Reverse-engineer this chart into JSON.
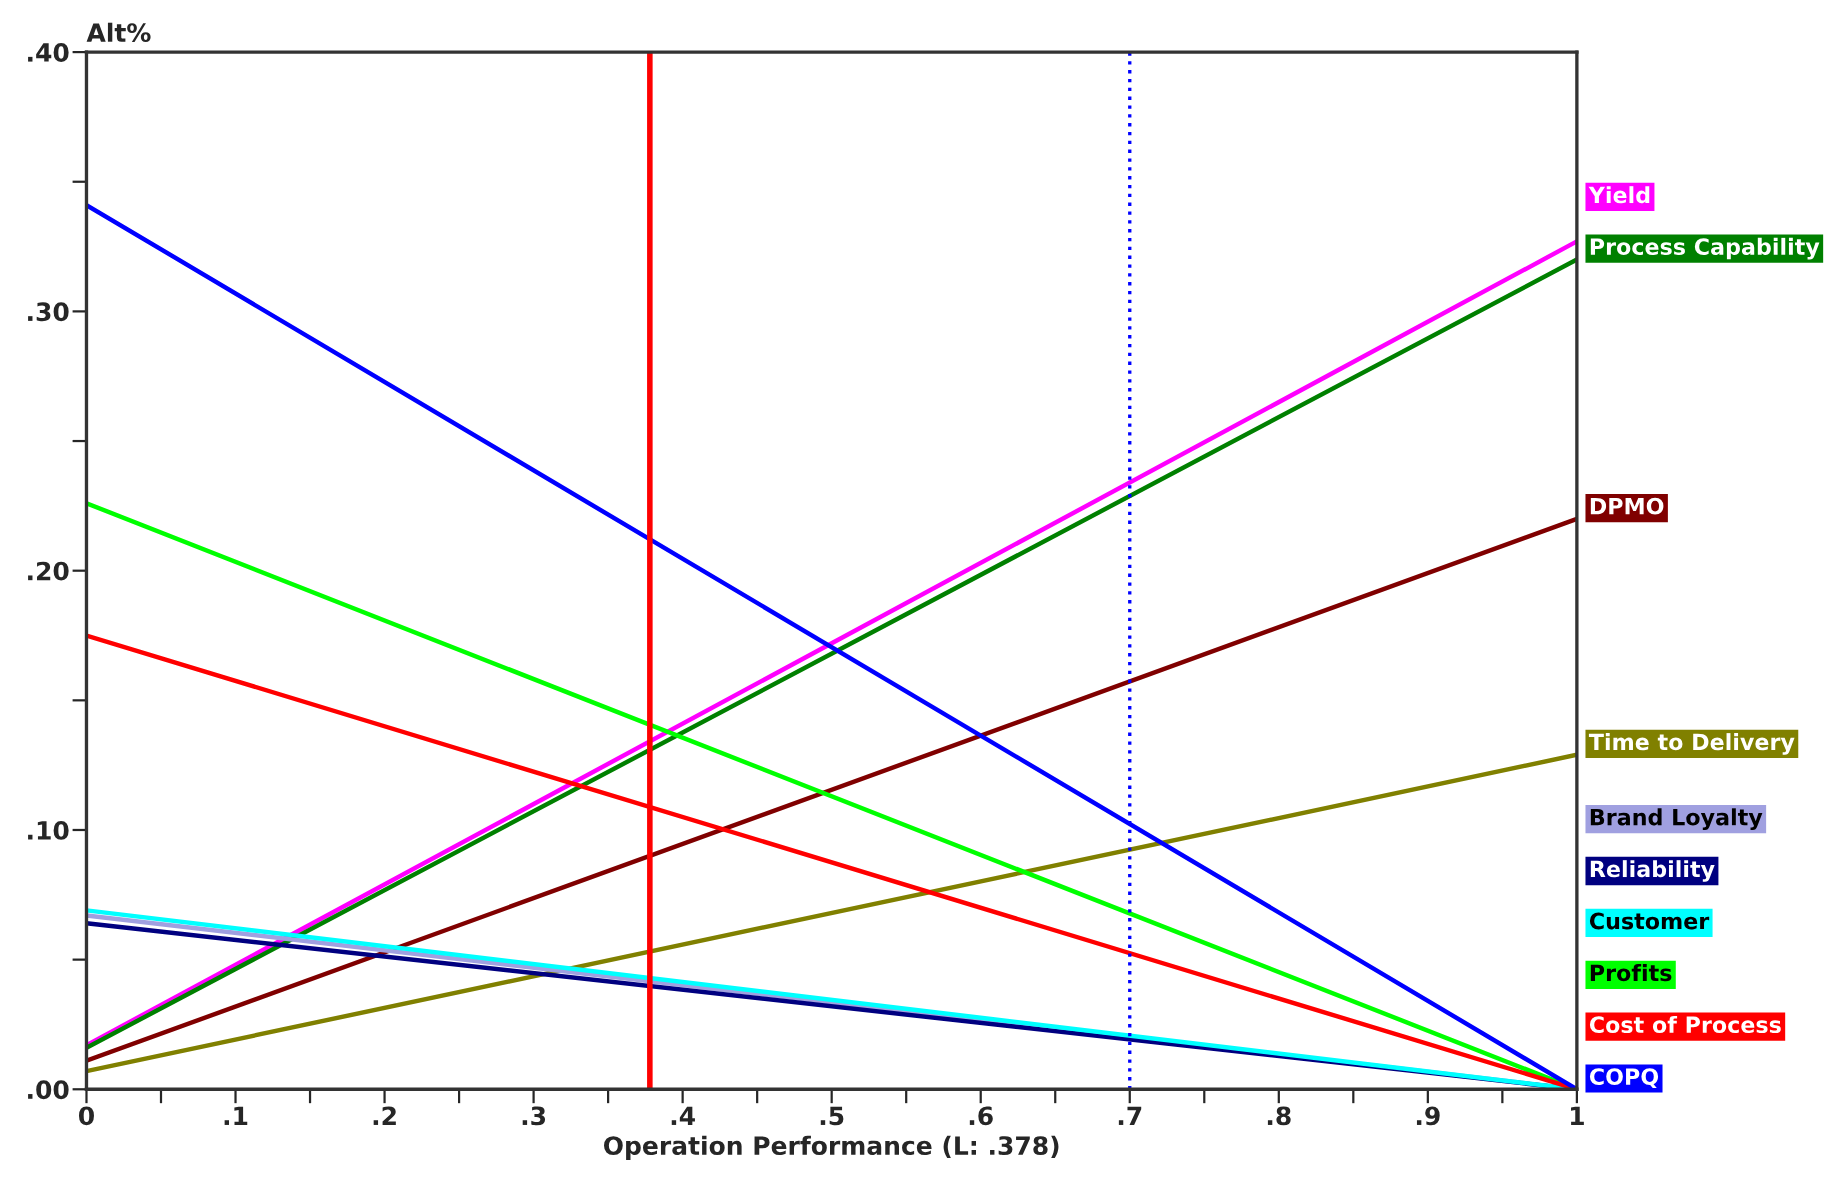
{
  "chart_data": {
    "type": "line",
    "xlabel": "Operation Performance (L: .378)",
    "ylabel": "Alt%",
    "x": [
      0,
      1
    ],
    "series": [
      {
        "name": "Yield",
        "color": "#ff00ff",
        "values": [
          0.017,
          0.327
        ]
      },
      {
        "name": "Process Capability",
        "color": "#008000",
        "values": [
          0.016,
          0.32
        ]
      },
      {
        "name": "DPMO",
        "color": "#800000",
        "values": [
          0.011,
          0.22
        ]
      },
      {
        "name": "Time to Delivery",
        "color": "#808000",
        "values": [
          0.007,
          0.129
        ]
      },
      {
        "name": "Brand Loyalty",
        "color": "#a0a0e0",
        "values": [
          0.067,
          0.0
        ]
      },
      {
        "name": "Reliability",
        "color": "#000080",
        "values": [
          0.064,
          0.0
        ]
      },
      {
        "name": "Customer",
        "color": "#00ffff",
        "values": [
          0.069,
          0.0
        ]
      },
      {
        "name": "Profits",
        "color": "#00ff00",
        "values": [
          0.226,
          0.0
        ]
      },
      {
        "name": "Cost of Process",
        "color": "#ff0000",
        "values": [
          0.175,
          0.0
        ]
      },
      {
        "name": "COPQ",
        "color": "#0000ff",
        "values": [
          0.341,
          0.0
        ]
      }
    ],
    "xlim": [
      0,
      1
    ],
    "xticks": [
      {
        "value": 0,
        "label": "0"
      },
      {
        "value": 0.05,
        "label": null
      },
      {
        "value": 0.1,
        "label": ".1"
      },
      {
        "value": 0.15,
        "label": null
      },
      {
        "value": 0.2,
        "label": ".2"
      },
      {
        "value": 0.25,
        "label": null
      },
      {
        "value": 0.3,
        "label": ".3"
      },
      {
        "value": 0.35,
        "label": null
      },
      {
        "value": 0.4,
        "label": ".4"
      },
      {
        "value": 0.45,
        "label": null
      },
      {
        "value": 0.5,
        "label": ".5"
      },
      {
        "value": 0.55,
        "label": null
      },
      {
        "value": 0.6,
        "label": ".6"
      },
      {
        "value": 0.65,
        "label": null
      },
      {
        "value": 0.7,
        "label": ".7"
      },
      {
        "value": 0.75,
        "label": null
      },
      {
        "value": 0.8,
        "label": ".8"
      },
      {
        "value": 0.85,
        "label": null
      },
      {
        "value": 0.9,
        "label": ".9"
      },
      {
        "value": 0.95,
        "label": null
      },
      {
        "value": 1,
        "label": "1"
      }
    ],
    "ylim": [
      0,
      0.4
    ],
    "yticks": [
      {
        "value": 0,
        "label": ".00"
      },
      {
        "value": 0.05,
        "label": null
      },
      {
        "value": 0.1,
        "label": ".10"
      },
      {
        "value": 0.15,
        "label": null
      },
      {
        "value": 0.2,
        "label": ".20"
      },
      {
        "value": 0.25,
        "label": null
      },
      {
        "value": 0.3,
        "label": ".30"
      },
      {
        "value": 0.35,
        "label": null
      },
      {
        "value": 0.4,
        "label": ".40"
      }
    ],
    "ref_lines": [
      {
        "axis": "x",
        "value": 0.378,
        "color": "#ff0000",
        "line_style": "solid"
      },
      {
        "axis": "x",
        "value": 0.7,
        "color": "#0000ff",
        "line_style": "dotted"
      }
    ],
    "grid": false,
    "legend": "right"
  }
}
